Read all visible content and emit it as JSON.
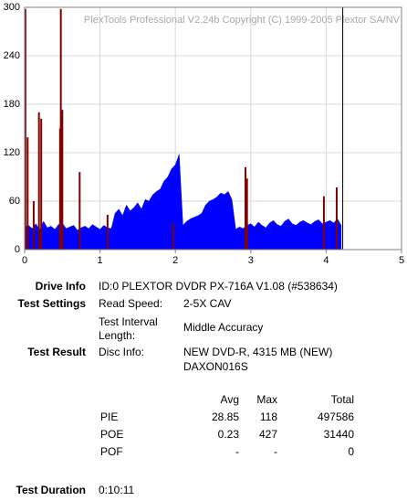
{
  "chart_data": {
    "type": "area",
    "title": "PlexTools Professional V2.24b Copyright (C) 1999-2005 Plextor SA/NV",
    "xlim": [
      0,
      5
    ],
    "xticks": [
      0,
      1,
      2,
      3,
      4,
      5
    ],
    "ylim": [
      0,
      300
    ],
    "yticks": [
      0,
      60,
      120,
      180,
      240,
      300
    ],
    "grid": true,
    "series": [
      {
        "color": "#0000ff",
        "style": "area",
        "x": [
          0,
          0.05,
          0.1,
          0.15,
          0.2,
          0.25,
          0.3,
          0.35,
          0.4,
          0.45,
          0.5,
          0.55,
          0.6,
          0.65,
          0.7,
          0.75,
          0.8,
          0.85,
          0.9,
          0.95,
          1.0,
          1.05,
          1.1,
          1.15,
          1.2,
          1.25,
          1.3,
          1.35,
          1.4,
          1.45,
          1.5,
          1.55,
          1.6,
          1.65,
          1.7,
          1.75,
          1.8,
          1.85,
          1.9,
          1.95,
          2.0,
          2.05,
          2.1,
          2.15,
          2.2,
          2.25,
          2.3,
          2.35,
          2.4,
          2.45,
          2.5,
          2.55,
          2.6,
          2.65,
          2.7,
          2.75,
          2.8,
          2.85,
          2.9,
          2.95,
          3.0,
          3.05,
          3.1,
          3.15,
          3.2,
          3.25,
          3.3,
          3.35,
          3.4,
          3.45,
          3.5,
          3.55,
          3.6,
          3.65,
          3.7,
          3.75,
          3.8,
          3.85,
          3.9,
          3.95,
          4.0,
          4.05,
          4.1,
          4.15,
          4.2
        ],
        "values": [
          28,
          30,
          26,
          32,
          24,
          35,
          27,
          29,
          25,
          31,
          33,
          26,
          28,
          30,
          24,
          27,
          29,
          26,
          31,
          28,
          25,
          30,
          27,
          26,
          45,
          50,
          42,
          55,
          48,
          52,
          58,
          50,
          62,
          60,
          68,
          72,
          75,
          85,
          90,
          100,
          105,
          118,
          30,
          35,
          38,
          40,
          42,
          45,
          55,
          60,
          62,
          65,
          70,
          68,
          72,
          62,
          25,
          28,
          26,
          30,
          32,
          28,
          34,
          30,
          27,
          33,
          36,
          31,
          29,
          35,
          38,
          32,
          30,
          34,
          36,
          33,
          31,
          35,
          37,
          32,
          34,
          36,
          33,
          38,
          30
        ]
      },
      {
        "color": "#800000",
        "style": "bar",
        "x": [
          0.01,
          0.04,
          0.12,
          0.19,
          0.22,
          0.47,
          0.48,
          0.5,
          0.73,
          1.1,
          1.97,
          2.93,
          2.95,
          3.97,
          4.14
        ],
        "values": [
          298,
          139,
          60,
          170,
          162,
          150,
          298,
          173,
          96,
          43,
          32,
          102,
          88,
          66,
          77
        ]
      }
    ],
    "vline": {
      "x": 4.22,
      "color": "#000000"
    }
  },
  "report": {
    "drive_info": {
      "label": "Drive Info",
      "value": "ID:0 PLEXTOR DVDR PX-716A V1.08 (#538634)"
    },
    "test_settings": {
      "label": "Test Settings",
      "items": [
        [
          "Read Speed:",
          "2-5X CAV"
        ],
        [
          "Test Interval Length:",
          "Middle Accuracy"
        ]
      ]
    },
    "test_result": {
      "label": "Test Result",
      "disc_info_label": "Disc Info:",
      "disc_info": [
        "NEW DVD-R, 4315 MB (NEW)",
        "DAXON016S"
      ]
    },
    "stats": {
      "header": [
        "Avg",
        "Max",
        "Total"
      ],
      "rows": [
        [
          "PIE",
          28.85,
          118,
          497586
        ],
        [
          "POE",
          0.23,
          427,
          31440
        ],
        [
          "POF",
          "-",
          "-",
          0
        ]
      ]
    },
    "test_duration": {
      "label": "Test Duration",
      "value": "0:10:11"
    }
  }
}
